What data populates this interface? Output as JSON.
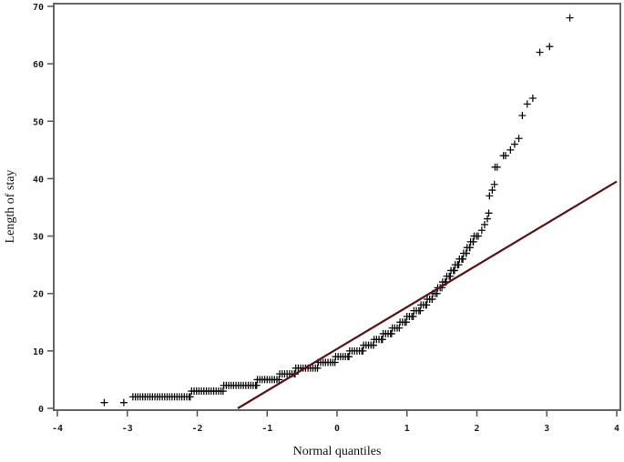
{
  "chart_data": {
    "type": "scatter",
    "title": "",
    "xlabel": "Normal quantiles",
    "ylabel": "Length of stay",
    "xlim": [
      -4,
      4
    ],
    "ylim": [
      0,
      70
    ],
    "xticks": [
      "-4",
      "-3",
      "-2",
      "-1",
      "0",
      "1",
      "2",
      "3",
      "4"
    ],
    "yticks": [
      "0",
      "10",
      "20",
      "30",
      "40",
      "50",
      "60",
      "70"
    ],
    "grid": false,
    "marker": "plus",
    "marker_color": "#111111",
    "reference_line": {
      "color": "#5a1414",
      "from": [
        -1.42,
        0
      ],
      "to": [
        4,
        39.5
      ]
    },
    "dense_runs": [
      {
        "y": 2,
        "x_from": -2.92,
        "x_to": -2.1
      },
      {
        "y": 3,
        "x_from": -2.08,
        "x_to": -1.63
      },
      {
        "y": 4,
        "x_from": -1.62,
        "x_to": -1.15
      },
      {
        "y": 5,
        "x_from": -1.14,
        "x_to": -0.83
      },
      {
        "y": 6,
        "x_from": -0.82,
        "x_to": -0.6
      },
      {
        "y": 7,
        "x_from": -0.59,
        "x_to": -0.28
      },
      {
        "y": 8,
        "x_from": -0.27,
        "x_to": -0.03
      },
      {
        "y": 9,
        "x_from": -0.02,
        "x_to": 0.17
      },
      {
        "y": 10,
        "x_from": 0.18,
        "x_to": 0.37
      },
      {
        "y": 11,
        "x_from": 0.38,
        "x_to": 0.52
      },
      {
        "y": 12,
        "x_from": 0.53,
        "x_to": 0.65
      },
      {
        "y": 13,
        "x_from": 0.66,
        "x_to": 0.78
      },
      {
        "y": 14,
        "x_from": 0.79,
        "x_to": 0.89
      },
      {
        "y": 15,
        "x_from": 0.9,
        "x_to": 0.99
      },
      {
        "y": 16,
        "x_from": 1.0,
        "x_to": 1.09
      },
      {
        "y": 17,
        "x_from": 1.1,
        "x_to": 1.19
      },
      {
        "y": 18,
        "x_from": 1.2,
        "x_to": 1.28
      },
      {
        "y": 19,
        "x_from": 1.29,
        "x_to": 1.36
      },
      {
        "y": 20,
        "x_from": 1.37,
        "x_to": 1.43
      },
      {
        "y": 21,
        "x_from": 1.44,
        "x_to": 1.5
      },
      {
        "y": 22,
        "x_from": 1.51,
        "x_to": 1.56
      },
      {
        "y": 23,
        "x_from": 1.57,
        "x_to": 1.62
      },
      {
        "y": 24,
        "x_from": 1.63,
        "x_to": 1.68
      },
      {
        "y": 25,
        "x_from": 1.69,
        "x_to": 1.74
      },
      {
        "y": 26,
        "x_from": 1.75,
        "x_to": 1.8
      },
      {
        "y": 27,
        "x_from": 1.81,
        "x_to": 1.85
      },
      {
        "y": 28,
        "x_from": 1.86,
        "x_to": 1.9
      },
      {
        "y": 29,
        "x_from": 1.91,
        "x_to": 1.95
      },
      {
        "y": 30,
        "x_from": 1.96,
        "x_to": 2.02
      }
    ],
    "points": [
      [
        -3.33,
        1
      ],
      [
        -3.05,
        1
      ],
      [
        2.07,
        31
      ],
      [
        2.11,
        32
      ],
      [
        2.15,
        33
      ],
      [
        2.17,
        34
      ],
      [
        2.18,
        37
      ],
      [
        2.22,
        38
      ],
      [
        2.25,
        39
      ],
      [
        2.26,
        42
      ],
      [
        2.29,
        42
      ],
      [
        2.38,
        44
      ],
      [
        2.41,
        44
      ],
      [
        2.48,
        45
      ],
      [
        2.54,
        46
      ],
      [
        2.6,
        47
      ],
      [
        2.65,
        51
      ],
      [
        2.72,
        53
      ],
      [
        2.8,
        54
      ],
      [
        2.9,
        62
      ],
      [
        3.04,
        63
      ],
      [
        3.33,
        68
      ]
    ]
  }
}
